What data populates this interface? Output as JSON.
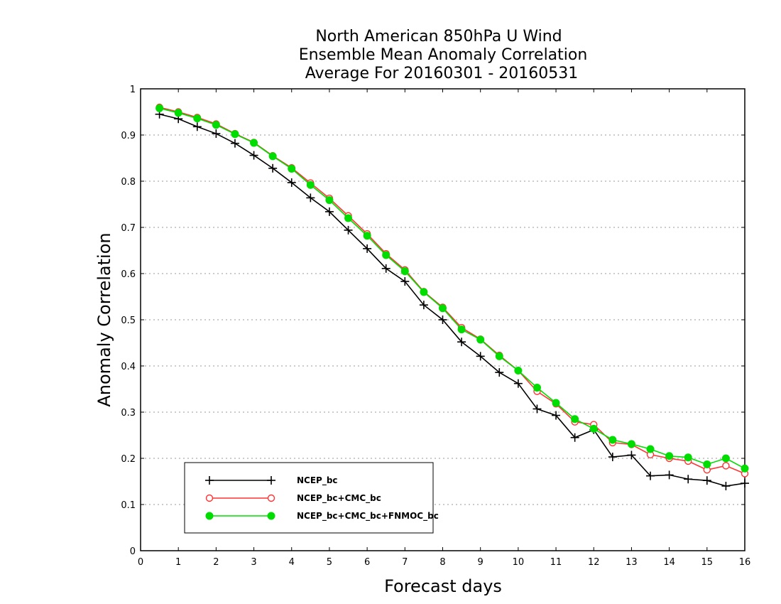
{
  "chart_data": {
    "type": "line",
    "title": [
      "North American 850hPa U Wind",
      "Ensemble Mean Anomaly Correlation",
      "Average For 20160301 - 20160531"
    ],
    "xlabel": "Forecast days",
    "ylabel": "Anomaly Correlation",
    "xlim": [
      0,
      16
    ],
    "ylim": [
      0,
      1
    ],
    "xticks": [
      "0",
      "1",
      "2",
      "3",
      "4",
      "5",
      "6",
      "7",
      "8",
      "9",
      "10",
      "11",
      "12",
      "13",
      "14",
      "15",
      "16"
    ],
    "yticks": [
      "0",
      "0.1",
      "0.2",
      "0.3",
      "0.4",
      "0.5",
      "0.6",
      "0.7",
      "0.8",
      "0.9",
      "1"
    ],
    "grid": "horizontal dotted",
    "legend_position": "bottom-left",
    "x": [
      0.5,
      1,
      1.5,
      2,
      2.5,
      3,
      3.5,
      4,
      4.5,
      5,
      5.5,
      6,
      6.5,
      7,
      7.5,
      8,
      8.5,
      9,
      9.5,
      10,
      10.5,
      11,
      11.5,
      12,
      12.5,
      13,
      13.5,
      14,
      14.5,
      15,
      15.5,
      16
    ],
    "series": [
      {
        "name": "NCEP_bc",
        "color": "#000000",
        "marker": "plus",
        "values": [
          0.945,
          0.935,
          0.918,
          0.903,
          0.882,
          0.856,
          0.828,
          0.797,
          0.764,
          0.734,
          0.694,
          0.654,
          0.611,
          0.583,
          0.532,
          0.5,
          0.452,
          0.421,
          0.386,
          0.362,
          0.307,
          0.293,
          0.245,
          0.262,
          0.203,
          0.207,
          0.162,
          0.164,
          0.155,
          0.152,
          0.14,
          0.146
        ]
      },
      {
        "name": "NCEP_bc+CMC_bc",
        "color": "#ff3333",
        "marker": "open-circle",
        "values": [
          0.96,
          0.95,
          0.938,
          0.924,
          0.903,
          0.884,
          0.855,
          0.829,
          0.796,
          0.763,
          0.725,
          0.686,
          0.643,
          0.608,
          0.561,
          0.527,
          0.483,
          0.458,
          0.423,
          0.39,
          0.345,
          0.318,
          0.279,
          0.273,
          0.234,
          0.23,
          0.208,
          0.2,
          0.194,
          0.175,
          0.184,
          0.167
        ]
      },
      {
        "name": "NCEP_bc+CMC_bc+FNMOC_bc",
        "color": "#00dd00",
        "marker": "filled-circle",
        "values": [
          0.958,
          0.948,
          0.936,
          0.922,
          0.902,
          0.883,
          0.854,
          0.827,
          0.792,
          0.759,
          0.72,
          0.682,
          0.64,
          0.605,
          0.56,
          0.525,
          0.479,
          0.457,
          0.421,
          0.39,
          0.353,
          0.32,
          0.285,
          0.264,
          0.24,
          0.231,
          0.22,
          0.205,
          0.202,
          0.187,
          0.2,
          0.178
        ]
      }
    ]
  }
}
